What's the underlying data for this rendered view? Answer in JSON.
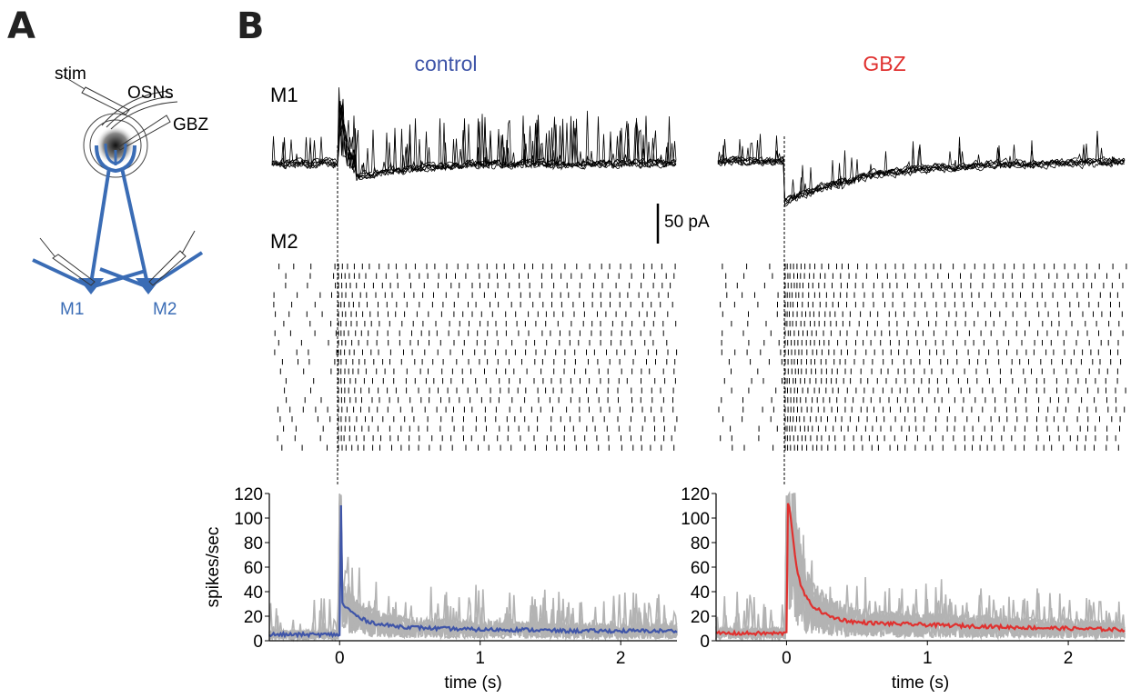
{
  "panels": {
    "a": "A",
    "b": "B"
  },
  "schematic": {
    "stim": "stim",
    "osns": "OSNs",
    "gbz": "GBZ",
    "m1": "M1",
    "m2": "M2",
    "color": "#3a6cb5"
  },
  "traces": {
    "row_m1": "M1",
    "row_m2": "M2",
    "control_title": "control",
    "gbz_title": "GBZ",
    "scale_bar": "50 pA",
    "control_color": "#3f55a8",
    "gbz_color": "#e0312f"
  },
  "chart_data": [
    {
      "type": "line",
      "title": "control",
      "xlabel": "time (s)",
      "ylabel": "spikes/sec",
      "xlim": [
        -0.5,
        2.4
      ],
      "ylim": [
        0,
        120
      ],
      "xticks": [
        0,
        1,
        2
      ],
      "yticks": [
        0,
        20,
        40,
        60,
        80,
        100,
        120
      ],
      "grid": false,
      "series": [
        {
          "color": "#3f55a8",
          "x": [
            -0.5,
            -0.3,
            -0.1,
            -0.01,
            0.0,
            0.01,
            0.02,
            0.03,
            0.05,
            0.1,
            0.15,
            0.2,
            0.3,
            0.4,
            0.5,
            0.7,
            1.0,
            1.3,
            1.6,
            2.0,
            2.4
          ],
          "y": [
            5,
            5,
            5,
            5,
            5,
            110,
            30,
            29,
            27,
            22,
            18,
            16,
            13,
            12,
            11,
            10,
            9,
            9,
            8,
            8,
            8
          ]
        }
      ]
    },
    {
      "type": "line",
      "title": "GBZ",
      "xlabel": "time (s)",
      "ylabel": "",
      "xlim": [
        -0.5,
        2.4
      ],
      "ylim": [
        0,
        120
      ],
      "xticks": [
        0,
        1,
        2
      ],
      "yticks": [
        0,
        20,
        40,
        60,
        80,
        100,
        120
      ],
      "grid": false,
      "series": [
        {
          "color": "#e0312f",
          "x": [
            -0.5,
            -0.3,
            -0.1,
            -0.01,
            0.0,
            0.01,
            0.02,
            0.04,
            0.06,
            0.08,
            0.1,
            0.15,
            0.2,
            0.3,
            0.4,
            0.5,
            0.7,
            1.0,
            1.3,
            1.6,
            2.0,
            2.4
          ],
          "y": [
            6,
            6,
            6,
            6,
            6,
            113,
            110,
            90,
            70,
            55,
            45,
            33,
            27,
            20,
            17,
            15,
            14,
            13,
            12,
            11,
            10,
            9
          ]
        }
      ]
    }
  ]
}
